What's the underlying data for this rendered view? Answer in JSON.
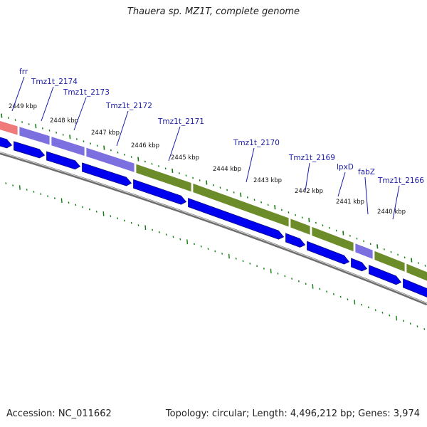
{
  "title": "Thauera sp. MZ1T, complete genome",
  "footer": {
    "accession": "Accession: NC_011662",
    "summary": "Topology: circular; Length: 4,496,212 bp; Genes: 3,974"
  },
  "colors": {
    "cds_forward": "#0000f0",
    "cds_forward_outline": "#1a1aa8",
    "cog_purple": "#7c6fe0",
    "cog_green": "#6c8c2a",
    "cog_red": "#f07a7a",
    "tick_green": "#0f7f0f",
    "backbone": "#6e6e6e",
    "label_blue": "#1a1aa8"
  },
  "gene_labels": [
    "frr",
    "Tmz1t_2174",
    "Tmz1t_2173",
    "Tmz1t_2172",
    "Tmz1t_2171",
    "Tmz1t_2170",
    "Tmz1t_2169",
    "lpxD",
    "fabZ",
    "Tmz1t_2166"
  ],
  "kbp_labels": [
    "2449 kbp",
    "2448 kbp",
    "2447 kbp",
    "2446 kbp",
    "2445 kbp",
    "2444 kbp",
    "2443 kbp",
    "2442 kbp",
    "2441 kbp",
    "2440 kbp"
  ],
  "cog_segments": [
    "red",
    "purple",
    "purple",
    "purple",
    "green",
    "green",
    "green",
    "green",
    "purple",
    "green",
    "green"
  ]
}
